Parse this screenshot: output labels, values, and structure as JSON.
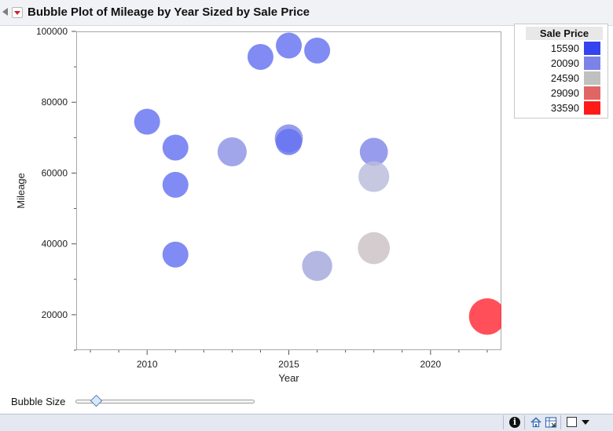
{
  "report": {
    "title": "Bubble Plot of Mileage by Year Sized by Sale Price"
  },
  "chart_data": {
    "type": "scatter",
    "subtype": "bubble",
    "title": "Bubble Plot of Mileage by Year Sized by Sale Price",
    "xlabel": "Year",
    "ylabel": "Mileage",
    "xlim": [
      2007.5,
      2022.5
    ],
    "ylim": [
      10000,
      100000
    ],
    "x_ticks": [
      2010,
      2015,
      2020
    ],
    "y_ticks": [
      20000,
      40000,
      60000,
      80000,
      100000
    ],
    "grid": false,
    "legend_position": "top-right",
    "legend": {
      "title": "Sale Price",
      "entries": [
        {
          "label": "15590",
          "color": "#3344ee"
        },
        {
          "label": "20090",
          "color": "#7b82e8"
        },
        {
          "label": "24590",
          "color": "#c0c0c0"
        },
        {
          "label": "29090",
          "color": "#e06666"
        },
        {
          "label": "33590",
          "color": "#ff1a1a"
        }
      ]
    },
    "points": [
      {
        "x": 2010,
        "y": 74500,
        "sale_price": 17000,
        "color": "#6471f0"
      },
      {
        "x": 2011,
        "y": 67200,
        "sale_price": 17000,
        "color": "#6471f0"
      },
      {
        "x": 2011,
        "y": 56700,
        "sale_price": 17000,
        "color": "#6471f0"
      },
      {
        "x": 2011,
        "y": 37000,
        "sale_price": 17000,
        "color": "#6471f0"
      },
      {
        "x": 2013,
        "y": 66000,
        "sale_price": 21500,
        "color": "#8c93e6"
      },
      {
        "x": 2014,
        "y": 92800,
        "sale_price": 17000,
        "color": "#6471f0"
      },
      {
        "x": 2015,
        "y": 96000,
        "sale_price": 17000,
        "color": "#6471f0"
      },
      {
        "x": 2015,
        "y": 69800,
        "sale_price": 20000,
        "color": "#8088e8"
      },
      {
        "x": 2015,
        "y": 68800,
        "sale_price": 17500,
        "color": "#6471f0"
      },
      {
        "x": 2016,
        "y": 94600,
        "sale_price": 17000,
        "color": "#6471f0"
      },
      {
        "x": 2016,
        "y": 33800,
        "sale_price": 23000,
        "color": "#a3a7dc"
      },
      {
        "x": 2018,
        "y": 66000,
        "sale_price": 20000,
        "color": "#8088e8"
      },
      {
        "x": 2018,
        "y": 59000,
        "sale_price": 24000,
        "color": "#b9bcdc"
      },
      {
        "x": 2018,
        "y": 38800,
        "sale_price": 26000,
        "color": "#cbc1c3"
      },
      {
        "x": 2022,
        "y": 19500,
        "sale_price": 33590,
        "color": "#ff2a35"
      }
    ]
  },
  "controls": {
    "bubble_size_label": "Bubble Size",
    "bubble_size_value": 0.12
  },
  "statusbar": {
    "icons": [
      "info-icon",
      "home-icon",
      "grid-icon",
      "checkbox-icon",
      "dropdown-icon"
    ]
  }
}
